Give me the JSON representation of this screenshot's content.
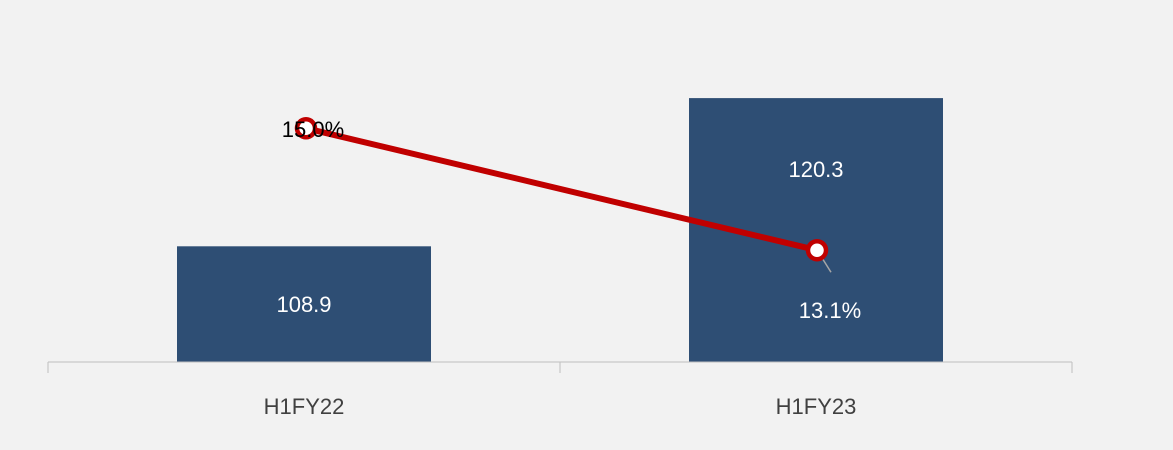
{
  "chart_data": {
    "type": "bar",
    "categories": [
      "H1FY22",
      "H1FY23"
    ],
    "series": [
      {
        "type": "bar",
        "values": [
          108.9,
          120.3
        ],
        "labels": [
          "108.9",
          "120.3"
        ],
        "color": "#2e4e74"
      },
      {
        "type": "line",
        "values": [
          15.0,
          13.1
        ],
        "labels": [
          "15.0%",
          "13.1%"
        ],
        "color": "#c00000"
      }
    ],
    "title": "",
    "xlabel": "",
    "ylabel": "",
    "grid": false,
    "legend": "none"
  }
}
